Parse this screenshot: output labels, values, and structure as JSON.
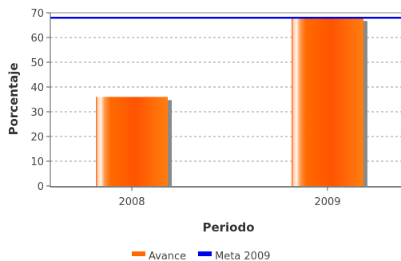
{
  "chart_data": {
    "type": "bar",
    "xlabel": "Periodo",
    "ylabel": "Porcentaje",
    "categories": [
      "2008",
      "2009"
    ],
    "ylim": [
      0,
      70
    ],
    "yticks": [
      0,
      10,
      20,
      30,
      40,
      50,
      60,
      70
    ],
    "grid": true,
    "series": [
      {
        "name": "Avance",
        "type": "bar",
        "values": [
          36,
          68
        ],
        "color": "#ff6a00"
      }
    ],
    "reference_lines": [
      {
        "name": "Meta 2009",
        "value": 68,
        "color": "#0000ee"
      }
    ],
    "legend": {
      "position": "bottom",
      "entries": [
        {
          "label": "Avance",
          "color": "#ff6a00"
        },
        {
          "label": "Meta 2009",
          "color": "#0000ee"
        }
      ]
    }
  }
}
